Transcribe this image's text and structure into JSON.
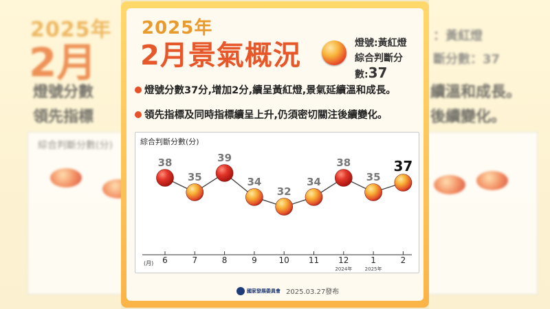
{
  "backdrop": {
    "year": "2025年",
    "month": "2月",
    "left_line1": "燈號分數",
    "left_line2": "領先指標",
    "left_chart_label": "綜合判斷分數(分)",
    "right_light": "：黃紅燈",
    "right_score": "斷分數：37",
    "right_line1": "續溫和成長。",
    "right_line2": "後續變化。"
  },
  "header": {
    "year": "2025年",
    "title": "2月景氣概況",
    "light_label": "燈號:黃紅燈",
    "score_label": "綜合判斷分數:",
    "score_value": "37"
  },
  "bullets": [
    "燈號分數37分,增加2分,續呈黃紅燈,景氣延續溫和成長。",
    "領先指標及同時指標續呈上升,仍須密切關注後續變化。"
  ],
  "chart_data": {
    "type": "line",
    "title": "綜合判斷分數(分)",
    "x_unit": "(月)",
    "categories": [
      "6",
      "7",
      "8",
      "9",
      "10",
      "11",
      "12",
      "1",
      "2"
    ],
    "sub_labels": [
      "",
      "",
      "",
      "",
      "",
      "",
      "2024年",
      "2025年",
      ""
    ],
    "values": [
      38,
      35,
      39,
      34,
      32,
      34,
      38,
      35,
      37
    ],
    "ylim": [
      28,
      42
    ],
    "marker_colors": [
      "#c8231c",
      "#f29a2e",
      "#c8231c",
      "#f29a2e",
      "#f29a2e",
      "#f29a2e",
      "#c8231c",
      "#f29a2e",
      "#f29a2e"
    ],
    "highlight_last": true
  },
  "footer": {
    "org": "國家發展委員會",
    "date": "2025.03.27發布"
  }
}
